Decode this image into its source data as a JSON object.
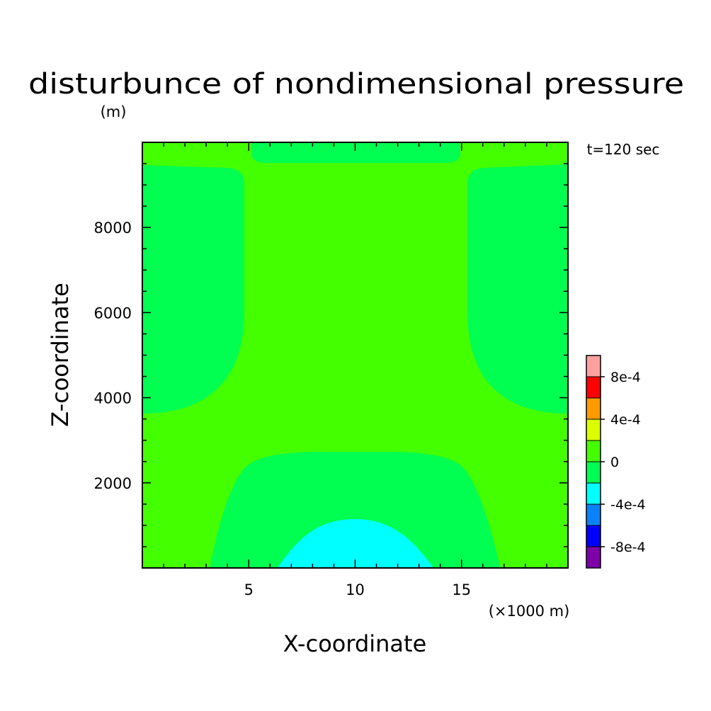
{
  "chart_data": {
    "type": "heatmap",
    "title": "disturbunce of nondimensional pressure",
    "y_unit_label": "(m)",
    "x_unit_label": "(×1000 m)",
    "xlabel": "X-coordinate",
    "ylabel": "Z-coordinate",
    "annotation": "t=120 sec",
    "xlim": [
      0,
      20
    ],
    "ylim": [
      0,
      10000
    ],
    "x_major_ticks": [
      5,
      10,
      15
    ],
    "x_tick_labels": [
      "5",
      "10",
      "15"
    ],
    "y_major_ticks": [
      2000,
      4000,
      6000,
      8000
    ],
    "y_tick_labels": [
      "2000",
      "4000",
      "6000",
      "8000"
    ],
    "colorbar": {
      "levels": [
        -0.001,
        -0.0008,
        -0.0006,
        -0.0004,
        -0.0002,
        0,
        0.0002,
        0.0004,
        0.0006,
        0.0008,
        0.001
      ],
      "colors": [
        "#7d00a8",
        "#0000ff",
        "#0a82ff",
        "#00ffff",
        "#00ff50",
        "#44ff00",
        "#dcff00",
        "#ff9b00",
        "#ff0000",
        "#ffa0a0"
      ],
      "tick_labels": [
        "8e-4",
        "4e-4",
        "0",
        "-4e-4",
        "-8e-4"
      ],
      "tick_values": [
        0.0008,
        0.0004,
        0,
        -0.0004,
        -0.0008
      ]
    },
    "regions": [
      {
        "band": "0 to 2e-4",
        "color": "#44ff00",
        "description": "background field"
      },
      {
        "band": "-2e-4 to 0",
        "color": "#00ff50",
        "description": "top center lobe, side lobes x<~5 and x>~15 above z~3600, lower-center dome below z~2750"
      },
      {
        "band": "-4e-4 to -2e-4",
        "color": "#00ffff",
        "description": "bottom center dome, x~6.5-13.5, z<~1200"
      }
    ]
  }
}
